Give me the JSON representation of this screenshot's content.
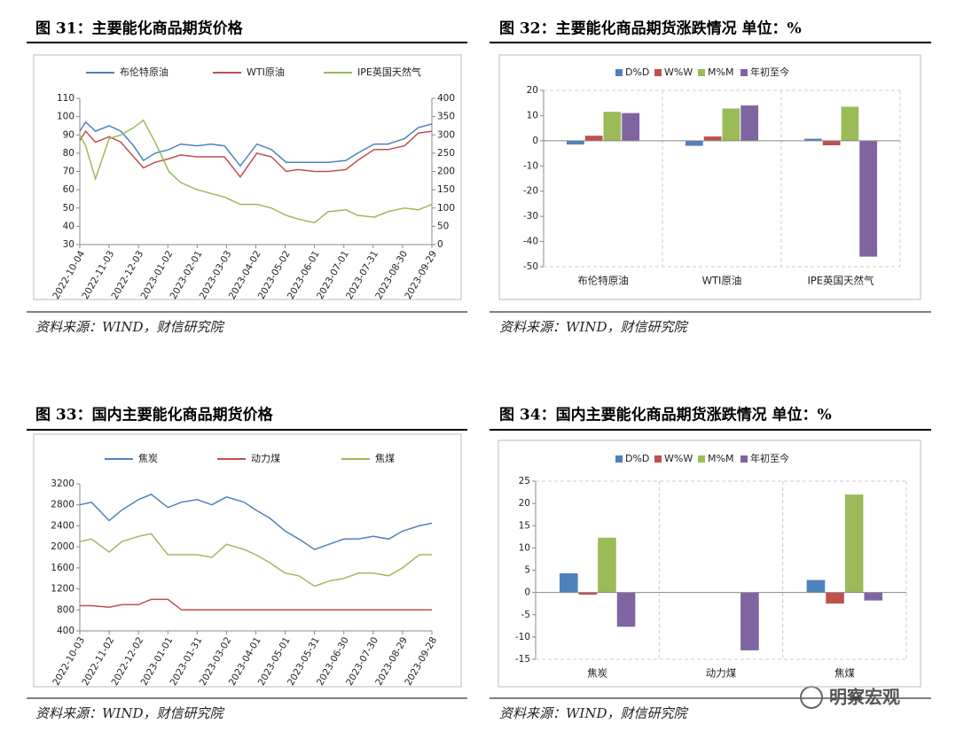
{
  "watermark": "明察宏观",
  "chart_data": [
    {
      "type": "line",
      "title": "图 31：主要能化商品期货价格",
      "source": "资料来源：WIND，财信研究院",
      "x": [
        "2022-10-04",
        "2022-10-10",
        "2022-10-20",
        "2022-11-03",
        "2022-11-15",
        "2022-11-28",
        "2022-12-08",
        "2022-12-20",
        "2023-01-03",
        "2023-01-15",
        "2023-02-01",
        "2023-02-15",
        "2023-03-01",
        "2023-03-17",
        "2023-04-03",
        "2023-04-18",
        "2023-05-03",
        "2023-05-15",
        "2023-06-01",
        "2023-06-15",
        "2023-07-03",
        "2023-07-15",
        "2023-08-01",
        "2023-08-15",
        "2023-09-01",
        "2023-09-15",
        "2023-09-29"
      ],
      "xlim": [
        "2022-10-04",
        "2023-09-29"
      ],
      "xticks": [
        "2022-10-04",
        "2022-11-03",
        "2022-12-03",
        "2023-01-02",
        "2023-02-01",
        "2023-03-03",
        "2023-04-02",
        "2023-05-02",
        "2023-06-01",
        "2023-07-01",
        "2023-07-31",
        "2023-08-30",
        "2023-09-29"
      ],
      "ylim": [
        30,
        110
      ],
      "yticks": [
        30,
        40,
        50,
        60,
        70,
        80,
        90,
        100,
        110
      ],
      "y2lim": [
        0,
        400
      ],
      "y2ticks": [
        0,
        50,
        100,
        150,
        200,
        250,
        300,
        350,
        400
      ],
      "series": [
        {
          "name": "布伦特原油",
          "color": "#4f81bd",
          "values": [
            92,
            97,
            92,
            95,
            92,
            84,
            76,
            80,
            82,
            85,
            84,
            85,
            84,
            73,
            85,
            82,
            75,
            75,
            75,
            75,
            76,
            80,
            85,
            85,
            88,
            94,
            96
          ]
        },
        {
          "name": "WTI原油",
          "color": "#c0504d",
          "values": [
            87,
            92,
            86,
            89,
            86,
            78,
            72,
            75,
            77,
            79,
            78,
            78,
            78,
            67,
            80,
            78,
            70,
            71,
            70,
            70,
            71,
            76,
            82,
            82,
            84,
            91,
            92
          ]
        },
        {
          "name": "IPE英国天然气",
          "color": "#9bbb59",
          "axis": "y2",
          "values": [
            300,
            270,
            180,
            290,
            300,
            320,
            340,
            280,
            200,
            170,
            150,
            140,
            130,
            110,
            110,
            100,
            80,
            70,
            60,
            90,
            95,
            80,
            75,
            90,
            100,
            95,
            110
          ]
        }
      ]
    },
    {
      "type": "bar",
      "title": "图 32：主要能化商品期货涨跌情况  单位：%",
      "source": "资料来源：WIND，财信研究院",
      "categories": [
        "布伦特原油",
        "WTI原油",
        "IPE英国天然气"
      ],
      "ylim": [
        -50,
        20
      ],
      "yticks": [
        -50,
        -40,
        -30,
        -20,
        -10,
        0,
        10,
        20
      ],
      "series": [
        {
          "name": "D%D",
          "color": "#4f81bd",
          "values": [
            -1.5,
            -2,
            0.8
          ]
        },
        {
          "name": "W%W",
          "color": "#c0504d",
          "values": [
            2,
            1.7,
            -1.8
          ]
        },
        {
          "name": "M%M",
          "color": "#9bbb59",
          "values": [
            11.5,
            12.8,
            13.5
          ]
        },
        {
          "name": "年初至今",
          "color": "#8064a2",
          "values": [
            11,
            14,
            -46
          ]
        }
      ]
    },
    {
      "type": "line",
      "title": "图 33：国内主要能化商品期货价格",
      "source": "资料来源：WIND，财信研究院",
      "x": [
        "2022-10-03",
        "2022-10-15",
        "2022-11-02",
        "2022-11-15",
        "2022-12-02",
        "2022-12-15",
        "2023-01-01",
        "2023-01-15",
        "2023-01-31",
        "2023-02-15",
        "2023-03-02",
        "2023-03-20",
        "2023-04-01",
        "2023-04-15",
        "2023-05-01",
        "2023-05-15",
        "2023-05-31",
        "2023-06-15",
        "2023-06-30",
        "2023-07-15",
        "2023-07-30",
        "2023-08-15",
        "2023-08-29",
        "2023-09-15",
        "2023-09-28"
      ],
      "xlim": [
        "2022-10-03",
        "2023-09-28"
      ],
      "xticks": [
        "2022-10-03",
        "2022-11-02",
        "2022-12-02",
        "2023-01-01",
        "2023-01-31",
        "2023-03-02",
        "2023-04-01",
        "2023-05-01",
        "2023-05-31",
        "2023-06-30",
        "2023-07-30",
        "2023-08-29",
        "2023-09-28"
      ],
      "ylim": [
        400,
        3200
      ],
      "yticks": [
        400,
        800,
        1200,
        1600,
        2000,
        2400,
        2800,
        3200
      ],
      "series": [
        {
          "name": "焦炭",
          "color": "#4f81bd",
          "values": [
            2800,
            2850,
            2500,
            2700,
            2900,
            3000,
            2750,
            2850,
            2900,
            2800,
            2950,
            2850,
            2700,
            2550,
            2300,
            2150,
            1950,
            2050,
            2150,
            2150,
            2200,
            2150,
            2300,
            2400,
            2450
          ]
        },
        {
          "name": "动力煤",
          "color": "#c0504d",
          "values": [
            880,
            880,
            850,
            900,
            900,
            1000,
            1000,
            800,
            800,
            800,
            800,
            800,
            800,
            800,
            800,
            800,
            800,
            800,
            800,
            800,
            800,
            800,
            800,
            800,
            800
          ]
        },
        {
          "name": "焦煤",
          "color": "#9bbb59",
          "values": [
            2100,
            2150,
            1900,
            2100,
            2200,
            2250,
            1850,
            1850,
            1850,
            1800,
            2050,
            1950,
            1850,
            1700,
            1500,
            1450,
            1250,
            1350,
            1400,
            1500,
            1500,
            1450,
            1600,
            1850,
            1850
          ]
        }
      ]
    },
    {
      "type": "bar",
      "title": "图 34：国内主要能化商品期货涨跌情况  单位：%",
      "source": "资料来源：WIND，财信研究院",
      "categories": [
        "焦炭",
        "动力煤",
        "焦煤"
      ],
      "ylim": [
        -15,
        25
      ],
      "yticks": [
        -15,
        -10,
        -5,
        0,
        5,
        10,
        15,
        20,
        25
      ],
      "series": [
        {
          "name": "D%D",
          "color": "#4f81bd",
          "values": [
            4.3,
            0,
            2.8
          ]
        },
        {
          "name": "W%W",
          "color": "#c0504d",
          "values": [
            -0.5,
            0,
            -2.5
          ]
        },
        {
          "name": "M%M",
          "color": "#9bbb59",
          "values": [
            12.3,
            0,
            22
          ]
        },
        {
          "name": "年初至今",
          "color": "#8064a2",
          "values": [
            -7.7,
            -13,
            -1.8
          ]
        }
      ]
    }
  ]
}
